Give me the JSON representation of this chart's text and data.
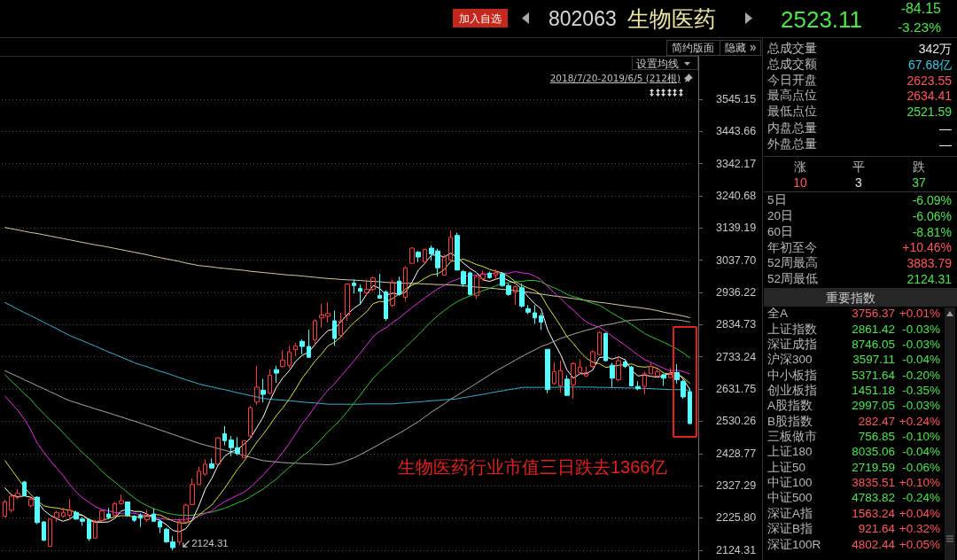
{
  "chart_data": {
    "type": "candlestick",
    "title": "生物医药",
    "categories": [
      null,
      null,
      null,
      null,
      null,
      null,
      null,
      null,
      null,
      null,
      null,
      null,
      null,
      null,
      null,
      null,
      null,
      null,
      null,
      null,
      null,
      null,
      null,
      null,
      null,
      null,
      null,
      null,
      null,
      null,
      null,
      null,
      null,
      null,
      null,
      null,
      null,
      null,
      null,
      null,
      null,
      null,
      null,
      null,
      null,
      null,
      null,
      null,
      null,
      null,
      null,
      null,
      null,
      null,
      null,
      null,
      null,
      null,
      null,
      null,
      null,
      null,
      null,
      null,
      null,
      null,
      null,
      null,
      null,
      null,
      null,
      null,
      null,
      null,
      null,
      null,
      null,
      null,
      null,
      null,
      null,
      null,
      null,
      null,
      null,
      null,
      null,
      null,
      null,
      null,
      null,
      null,
      null,
      null,
      null,
      null,
      null,
      null,
      null,
      null,
      null,
      null,
      null,
      null,
      null,
      null,
      null
    ],
    "ohlc": [
      [
        2231,
        2283,
        2227,
        2276
      ],
      [
        2250,
        2303,
        2243,
        2294
      ],
      [
        2291,
        2317,
        2285,
        2303
      ],
      [
        2339,
        2342,
        2294,
        2296
      ],
      [
        2264,
        2294,
        2259,
        2285
      ],
      [
        2291,
        2294,
        2206,
        2211
      ],
      [
        2213,
        2216,
        2153,
        2155
      ],
      [
        2136,
        2224,
        2134,
        2222
      ],
      [
        2227,
        2248,
        2213,
        2242
      ],
      [
        2231,
        2257,
        2227,
        2243
      ],
      [
        2234,
        2285,
        2220,
        2250
      ],
      [
        2243,
        2248,
        2220,
        2222
      ],
      [
        2222,
        2229,
        2201,
        2215
      ],
      [
        2220,
        2225,
        2153,
        2160
      ],
      [
        2162,
        2220,
        2160,
        2215
      ],
      [
        2218,
        2252,
        2213,
        2248
      ],
      [
        2238,
        2257,
        2222,
        2227
      ],
      [
        2234,
        2276,
        2231,
        2271
      ],
      [
        2271,
        2299,
        2268,
        2280
      ],
      [
        2276,
        2277,
        2229,
        2234
      ],
      [
        2231,
        2234,
        2213,
        2218
      ],
      [
        2234,
        2240,
        2197,
        2225
      ],
      [
        2220,
        2252,
        2213,
        2234
      ],
      [
        2238,
        2255,
        2213,
        2215
      ],
      [
        2215,
        2220,
        2178,
        2197
      ],
      [
        2190,
        2194,
        2147,
        2150
      ],
      [
        2150,
        2169,
        2124.31,
        2132
      ],
      [
        2150,
        2222,
        2140,
        2215
      ],
      [
        2213,
        2271,
        2211,
        2266
      ],
      [
        2268,
        2350,
        2266,
        2331
      ],
      [
        2331,
        2387,
        2329,
        2373
      ],
      [
        2364,
        2410,
        2359,
        2395
      ],
      [
        2396,
        2413,
        2380,
        2383
      ],
      [
        2395,
        2480,
        2392,
        2478
      ],
      [
        2491,
        2515,
        2454,
        2469
      ],
      [
        2471,
        2484,
        2420,
        2447
      ],
      [
        2447,
        2480,
        2423,
        2429
      ],
      [
        2415,
        2471,
        2414,
        2469
      ],
      [
        2484,
        2578,
        2480,
        2573
      ],
      [
        2591,
        2705,
        2582,
        2638
      ],
      [
        2628,
        2664,
        2590,
        2615
      ],
      [
        2619,
        2694,
        2615,
        2675
      ],
      [
        2693,
        2705,
        2652,
        2682
      ],
      [
        2703,
        2754,
        2698,
        2723
      ],
      [
        2707,
        2768,
        2698,
        2749
      ],
      [
        2756,
        2777,
        2735,
        2768
      ],
      [
        2782,
        2788,
        2742,
        2766
      ],
      [
        2766,
        2819,
        2731,
        2732
      ],
      [
        2788,
        2851,
        2768,
        2847
      ],
      [
        2856,
        2900,
        2826,
        2865
      ],
      [
        2861,
        2905,
        2842,
        2870
      ],
      [
        2847,
        2879,
        2768,
        2791
      ],
      [
        2801,
        2872,
        2796,
        2847
      ],
      [
        2865,
        2965,
        2847,
        2963
      ],
      [
        2966,
        2977,
        2933,
        2958
      ],
      [
        2949,
        2961,
        2898,
        2940
      ],
      [
        2935,
        2977,
        2926,
        2946
      ],
      [
        2946,
        2986,
        2940,
        2982
      ],
      [
        2927,
        2995,
        2916,
        2918
      ],
      [
        2938,
        2943,
        2847,
        2854
      ],
      [
        2896,
        2977,
        2890,
        2968
      ],
      [
        2972,
        2986,
        2926,
        2930
      ],
      [
        2921,
        3018,
        2907,
        3014
      ],
      [
        3028,
        3079,
        3026,
        3076
      ],
      [
        3063,
        3067,
        3032,
        3048
      ],
      [
        3032,
        3074,
        3030,
        3072
      ],
      [
        3076,
        3084,
        3037,
        3058
      ],
      [
        3067,
        3074,
        2986,
        3014
      ],
      [
        2991,
        3056,
        2989,
        3048
      ],
      [
        3039,
        3132,
        3032,
        3110
      ],
      [
        3116,
        3125,
        3005,
        3007
      ],
      [
        3002,
        3007,
        2954,
        2963
      ],
      [
        2998,
        3002,
        2927,
        2930
      ],
      [
        2926,
        2991,
        2916,
        2986
      ],
      [
        2980,
        3005,
        2974,
        2995
      ],
      [
        2997,
        3002,
        2980,
        2983
      ],
      [
        2991,
        3009,
        2977,
        2998
      ],
      [
        2995,
        3000,
        2954,
        2958
      ],
      [
        2958,
        2965,
        2926,
        2930
      ],
      [
        2937,
        2958,
        2898,
        2954
      ],
      [
        2951,
        2965,
        2888,
        2893
      ],
      [
        2885,
        2896,
        2868,
        2874
      ],
      [
        2872,
        2896,
        2837,
        2856
      ],
      [
        2862,
        2871,
        2818,
        2843
      ],
      [
        2757,
        2757,
        2619,
        2630
      ],
      [
        2649,
        2715,
        2645,
        2686
      ],
      [
        2642,
        2721,
        2621,
        2690
      ],
      [
        2663,
        2675,
        2610,
        2612
      ],
      [
        2645,
        2716,
        2601,
        2712
      ],
      [
        2684,
        2726,
        2680,
        2701
      ],
      [
        2673,
        2703,
        2670,
        2684
      ],
      [
        2703,
        2754,
        2698,
        2749
      ],
      [
        2740,
        2814,
        2738,
        2810
      ],
      [
        2807,
        2810,
        2720,
        2721
      ],
      [
        2707,
        2714,
        2638,
        2666
      ],
      [
        2661,
        2735,
        2656,
        2721
      ],
      [
        2717,
        2726,
        2698,
        2703
      ],
      [
        2701,
        2705,
        2640,
        2642
      ],
      [
        2640,
        2656,
        2628,
        2633
      ],
      [
        2640,
        2687,
        2615,
        2680
      ],
      [
        2680,
        2714,
        2679,
        2703
      ],
      [
        2673,
        2695,
        2668,
        2686
      ],
      [
        2677,
        2680,
        2642,
        2666
      ],
      [
        2668,
        2698,
        2666,
        2680
      ],
      [
        2684,
        2710,
        2649,
        2661
      ],
      [
        2656,
        2661,
        2601,
        2607
      ],
      [
        2623.55,
        2634.41,
        2521.59,
        2523.11
      ]
    ],
    "series": [
      {
        "type": "line",
        "color": "#d2cd9e",
        "values": [
          3141,
          3137,
          3133,
          3129,
          3125,
          3122,
          3118,
          3114,
          3110,
          3106,
          3102,
          3098,
          3094,
          3090,
          3086,
          3083,
          3079,
          3075,
          3071,
          3067,
          3063,
          3059,
          3055,
          3050,
          3046,
          3042,
          3038,
          3034,
          3029,
          3025,
          3021,
          3019,
          3017,
          3014,
          3012,
          3010,
          3008,
          3006,
          3003,
          3001,
          2999,
          2997,
          2995,
          2993,
          2991,
          2990,
          2988,
          2986,
          2984,
          2982,
          2980,
          2979,
          2977,
          2976,
          2975,
          2974,
          2972,
          2971,
          2970,
          2968,
          2967,
          2966,
          2965,
          2965,
          2964,
          2963,
          2962,
          2961,
          2961,
          2960,
          2959,
          2957,
          2955,
          2953,
          2952,
          2950,
          2948,
          2946,
          2944,
          2942,
          2940,
          2937,
          2934,
          2931,
          2928,
          2925,
          2923,
          2920,
          2917,
          2914,
          2911,
          2908,
          2905,
          2903,
          2900,
          2897,
          2894,
          2891,
          2889,
          2886,
          2883,
          2879,
          2874,
          2870,
          2866,
          2862,
          2857
        ]
      },
      {
        "type": "line",
        "color": "#3aaed0",
        "values": [
          2904,
          2894,
          2883,
          2873,
          2863,
          2853,
          2842,
          2832,
          2822,
          2811,
          2801,
          2792,
          2784,
          2775,
          2767,
          2758,
          2749,
          2741,
          2732,
          2724,
          2715,
          2708,
          2702,
          2695,
          2688,
          2682,
          2675,
          2668,
          2661,
          2655,
          2648,
          2643,
          2639,
          2634,
          2630,
          2625,
          2620,
          2616,
          2611,
          2607,
          2602,
          2600,
          2598,
          2597,
          2595,
          2593,
          2591,
          2589,
          2588,
          2586,
          2584,
          2584,
          2584,
          2584,
          2584,
          2584,
          2585,
          2585,
          2585,
          2585,
          2585,
          2587,
          2588,
          2590,
          2591,
          2593,
          2595,
          2596,
          2598,
          2599,
          2601,
          2605,
          2608,
          2612,
          2615,
          2619,
          2623,
          2626,
          2630,
          2633,
          2637,
          2637,
          2637,
          2637,
          2637,
          2637,
          2638,
          2638,
          2638,
          2638,
          2638,
          2638,
          2637,
          2637,
          2636,
          2636,
          2635,
          2635,
          2634,
          2634,
          2633,
          2632,
          2631,
          2630,
          2630,
          2629,
          2628
        ]
      },
      {
        "type": "line",
        "color": "#a8a8a8",
        "values": [
          2690,
          2680,
          2671,
          2661,
          2652,
          2642,
          2633,
          2623,
          2614,
          2604,
          2595,
          2589,
          2582,
          2576,
          2569,
          2563,
          2557,
          2550,
          2544,
          2537,
          2531,
          2524,
          2517,
          2510,
          2503,
          2496,
          2489,
          2482,
          2475,
          2468,
          2461,
          2455,
          2450,
          2444,
          2439,
          2433,
          2428,
          2422,
          2417,
          2411,
          2406,
          2404,
          2402,
          2400,
          2399,
          2398,
          2397,
          2396,
          2395,
          2394,
          2393,
          2395,
          2400,
          2407,
          2415,
          2425,
          2436,
          2447,
          2458,
          2470,
          2481,
          2492,
          2504,
          2517,
          2529,
          2544,
          2559,
          2572,
          2585,
          2600,
          2612,
          2625,
          2637,
          2650,
          2663,
          2676,
          2689,
          2700,
          2711,
          2723,
          2734,
          2745,
          2755,
          2766,
          2773,
          2782,
          2791,
          2798,
          2805,
          2811,
          2817,
          2822,
          2830,
          2834,
          2837,
          2842,
          2846,
          2849,
          2850,
          2851,
          2852,
          2852,
          2852,
          2851,
          2850,
          2847,
          2843
        ]
      },
      {
        "type": "line",
        "color": "#33c033",
        "values": [
          2677,
          2656,
          2638,
          2617,
          2599,
          2575,
          2554,
          2534,
          2515,
          2494,
          2472,
          2452,
          2431,
          2413,
          2394,
          2373,
          2355,
          2339,
          2322,
          2305,
          2289,
          2275,
          2264,
          2255,
          2248,
          2241,
          2237,
          2234,
          2234,
          2234,
          2238,
          2241,
          2244,
          2250,
          2256,
          2264,
          2273,
          2281,
          2292,
          2305,
          2317,
          2333,
          2348,
          2367,
          2385,
          2402,
          2420,
          2435,
          2454,
          2475,
          2497,
          2516,
          2536,
          2561,
          2587,
          2613,
          2640,
          2666,
          2687,
          2705,
          2725,
          2743,
          2764,
          2783,
          2803,
          2824,
          2845,
          2863,
          2879,
          2894,
          2907,
          2917,
          2925,
          2934,
          2942,
          2949,
          2957,
          2965,
          2967,
          2970,
          2971,
          2974,
          2974,
          2970,
          2959,
          2951,
          2942,
          2930,
          2923,
          2918,
          2909,
          2902,
          2896,
          2884,
          2871,
          2859,
          2848,
          2835,
          2821,
          2807,
          2797,
          2788,
          2779,
          2769,
          2758,
          2746,
          2730
        ]
      },
      {
        "type": "line",
        "color": "#e030e0",
        "values": [
          2609,
          2587,
          2564,
          2537,
          2503,
          2461,
          2433,
          2406,
          2383,
          2359,
          2331,
          2308,
          2289,
          2275,
          2261,
          2252,
          2248,
          2243,
          2240,
          2242,
          2240,
          2236,
          2233,
          2229,
          2224,
          2221,
          2220,
          2220,
          2221,
          2225,
          2231,
          2240,
          2248,
          2264,
          2277,
          2287,
          2297,
          2307,
          2322,
          2342,
          2362,
          2384,
          2407,
          2432,
          2460,
          2491,
          2522,
          2548,
          2577,
          2604,
          2629,
          2648,
          2672,
          2696,
          2720,
          2745,
          2771,
          2797,
          2814,
          2825,
          2842,
          2855,
          2872,
          2889,
          2904,
          2919,
          2934,
          2948,
          2958,
          2970,
          2977,
          2986,
          2990,
          2991,
          2993,
          2995,
          2998,
          2997,
          2997,
          3002,
          2998,
          2996,
          2988,
          2976,
          2955,
          2936,
          2917,
          2897,
          2881,
          2860,
          2844,
          2833,
          2827,
          2814,
          2798,
          2784,
          2770,
          2754,
          2739,
          2725,
          2716,
          2706,
          2697,
          2689,
          2691,
          2687,
          2679
        ]
      },
      {
        "type": "line",
        "color": "#e0e040",
        "values": [
          2406,
          2378,
          2350,
          2322,
          2299,
          2280,
          2264,
          2259,
          2257,
          2253,
          2250,
          2243,
          2234,
          2221,
          2214,
          2217,
          2224,
          2229,
          2233,
          2232,
          2229,
          2229,
          2231,
          2237,
          2235,
          2225,
          2216,
          2210,
          2209,
          2218,
          2234,
          2251,
          2266,
          2292,
          2319,
          2349,
          2379,
          2404,
          2435,
          2465,
          2490,
          2518,
          2548,
          2572,
          2600,
          2632,
          2666,
          2692,
          2720,
          2742,
          2768,
          2779,
          2796,
          2820,
          2841,
          2858,
          2876,
          2901,
          2908,
          2907,
          2917,
          2931,
          2947,
          2959,
          2968,
          2981,
          2992,
          2995,
          3008,
          3034,
          3038,
          3041,
          3033,
          3024,
          3018,
          3009,
          3003,
          2998,
          2986,
          2970,
          2959,
          2950,
          2943,
          2928,
          2892,
          2862,
          2831,
          2797,
          2775,
          2750,
          2729,
          2716,
          2712,
          2700,
          2703,
          2707,
          2708,
          2711,
          2703,
          2701,
          2703,
          2697,
          2682,
          2678,
          2680,
          2668,
          2650
        ]
      },
      {
        "type": "line",
        "color": "#ffffff",
        "values": [
          2320,
          2298,
          2292,
          2295,
          2291,
          2278,
          2250,
          2234,
          2223,
          2215,
          2222,
          2236,
          2234,
          2218,
          2212,
          2212,
          2213,
          2224,
          2248,
          2252,
          2246,
          2246,
          2238,
          2225,
          2218,
          2204,
          2186,
          2182,
          2192,
          2219,
          2263,
          2316,
          2350,
          2392,
          2420,
          2434,
          2441,
          2458,
          2477,
          2511,
          2545,
          2594,
          2637,
          2667,
          2689,
          2719,
          2738,
          2748,
          2772,
          2796,
          2816,
          2821,
          2844,
          2867,
          2886,
          2900,
          2931,
          2958,
          2949,
          2928,
          2934,
          2930,
          2937,
          2968,
          3007,
          3028,
          3054,
          3054,
          3048,
          3060,
          3047,
          3028,
          3012,
          2999,
          2976,
          2971,
          2978,
          2984,
          2973,
          2965,
          2947,
          2922,
          2901,
          2884,
          2819,
          2778,
          2741,
          2692,
          2666,
          2680,
          2680,
          2692,
          2731,
          2733,
          2726,
          2733,
          2724,
          2691,
          2673,
          2676,
          2672,
          2669,
          2674,
          2683,
          2683,
          2664,
          2631
        ]
      }
    ],
    "ylim": [
      2093,
      3682
    ],
    "yticks": [
      3545.15,
      3443.66,
      3342.17,
      3240.68,
      3139.19,
      {
        "value": 3037.7,
        "label": "3037.70"
      },
      2936.22,
      2834.73,
      2733.24,
      2631.75,
      2530.26,
      2428.77,
      2327.29,
      {
        "value": 2225.8,
        "label": "2225.80"
      },
      2124.31
    ],
    "grid": "y",
    "tick_labels": "y",
    "annotations": [
      "加入自选",
      "802063",
      "2523.11",
      "-84.15",
      "-3.23%",
      "简约版面",
      "隐藏",
      "设置均线",
      "2018/7/20-2019/6/5 (212根)",
      "2124.31",
      "生物医药行业市值三日跌去1366亿",
      "总成交量",
      "342万",
      "总成交额",
      "67.68亿",
      "今日开盘",
      "2623.55",
      "最高点位",
      "2634.41",
      "最低点位",
      "2521.59",
      "内盘总量",
      "—",
      "外盘总量",
      "—",
      "涨",
      "平",
      "跌",
      "10",
      "3",
      "37",
      "5日",
      "-6.09%",
      "20日",
      "-6.06%",
      "60日",
      "-8.81%",
      "年初至今",
      "+10.46%",
      "52周最高",
      "3883.79",
      "52周最低",
      "2124.31",
      "重要指数",
      "全A",
      "3756.37",
      "+0.01%",
      "上证指数",
      "2861.42",
      "-0.03%",
      "深证成指",
      "8746.05",
      "-0.03%",
      "沪深300",
      "3597.11",
      "-0.04%",
      "中小板指",
      "5371.64",
      "-0.20%",
      "创业板指",
      "1451.18",
      "-0.35%",
      "A股指数",
      "2997.05",
      "-0.03%",
      "B股指数",
      "282.47",
      "+0.24%",
      "三板做市",
      "756.85",
      "-0.10%",
      "上证180",
      "8035.06",
      "-0.04%",
      "上证50",
      "2719.59",
      "-0.06%",
      "中证100",
      "3835.51",
      "+0.10%",
      "中证500",
      "4783.82",
      "-0.24%",
      "深证A指",
      "1563.24",
      "+0.04%",
      "深证B指",
      "921.64",
      "+0.32%",
      "深证100R",
      "4802.44",
      "+0.05%"
    ]
  }
}
